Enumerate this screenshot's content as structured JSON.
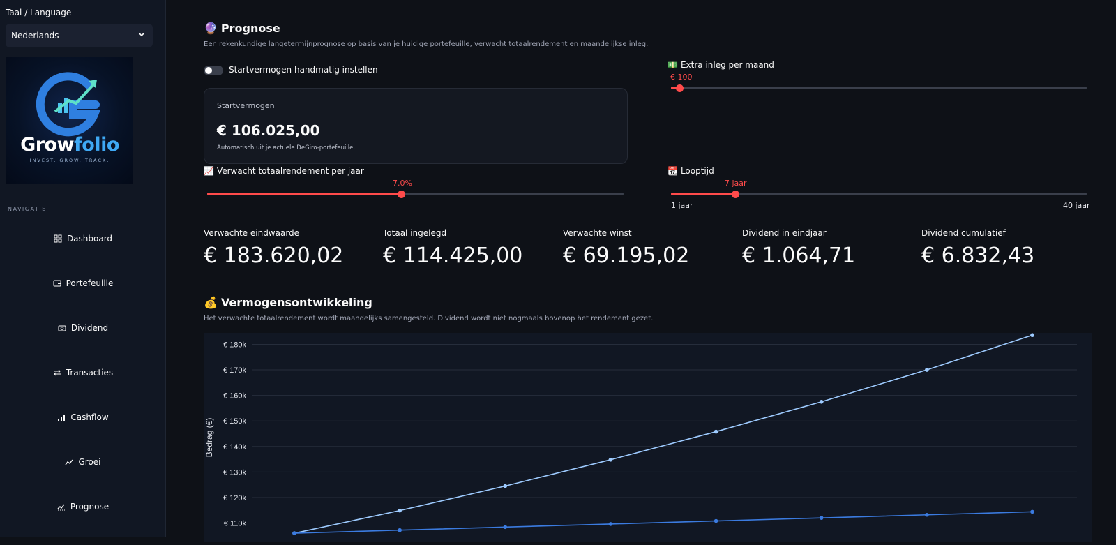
{
  "sidebar": {
    "lang_label": "Taal / Language",
    "lang_value": "Nederlands",
    "logo_word_a": "Grow",
    "logo_word_b": "folio",
    "logo_tagline": "INVEST. GROW. TRACK.",
    "nav_label": "NAVIGATIE",
    "items": [
      {
        "label": "Dashboard",
        "icon": "dashboard-icon"
      },
      {
        "label": "Portefeuille",
        "icon": "wallet-icon"
      },
      {
        "label": "Dividend",
        "icon": "cash-icon"
      },
      {
        "label": "Transacties",
        "icon": "swap-icon"
      },
      {
        "label": "Cashflow",
        "icon": "cashflow-icon"
      },
      {
        "label": "Groei",
        "icon": "trend-icon"
      },
      {
        "label": "Prognose",
        "icon": "forecast-icon"
      }
    ]
  },
  "page": {
    "title": "Prognose",
    "title_emoji": "🔮",
    "subtitle": "Een rekenkundige langetermijnprognose op basis van je huidige portefeuille, verwacht totaalrendement en maandelijkse inleg.",
    "toggle_label": "Startvermogen handmatig instellen",
    "toggle_on": false
  },
  "start_card": {
    "label": "Startvermogen",
    "value": "€ 106.025,00",
    "note": "Automatisch uit je actuele DeGiro-portefeuille."
  },
  "sliders": {
    "monthly": {
      "emoji": "💵",
      "label": "Extra inleg per maand",
      "value_text": "€ 100",
      "fraction": 0.02
    },
    "return": {
      "emoji": "📈",
      "label": "Verwacht totaalrendement per jaar",
      "value_text": "7.0%",
      "fraction": 0.467
    },
    "duration": {
      "emoji": "📆",
      "label": "Looptijd",
      "value_text": "7 jaar",
      "fraction": 0.154,
      "min_label": "1 jaar",
      "max_label": "40 jaar"
    }
  },
  "metrics": [
    {
      "label": "Verwachte eindwaarde",
      "value": "€ 183.620,02"
    },
    {
      "label": "Totaal ingelegd",
      "value": "€ 114.425,00"
    },
    {
      "label": "Verwachte winst",
      "value": "€ 69.195,02"
    },
    {
      "label": "Dividend in eindjaar",
      "value": "€ 1.064,71"
    },
    {
      "label": "Dividend cumulatief",
      "value": "€ 6.832,43"
    }
  ],
  "section2": {
    "title": "Vermogensontwikkeling",
    "emoji": "💰",
    "subtitle": "Het verwachte totaalrendement wordt maandelijks samengesteld. Dividend wordt niet nogmaals bovenop het rendement gezet."
  },
  "colors": {
    "accent": "#ff4b4b",
    "line_value": "#9ecbff",
    "line_invested": "#3b7be0"
  },
  "chart_data": {
    "type": "line",
    "ylabel": "Bedrag (€)",
    "yticks": [
      "€ 110k",
      "€ 120k",
      "€ 130k",
      "€ 140k",
      "€ 150k",
      "€ 160k",
      "€ 170k",
      "€ 180k"
    ],
    "ytick_values": [
      110000,
      120000,
      130000,
      140000,
      150000,
      160000,
      170000,
      180000
    ],
    "ylim": [
      102500,
      184500
    ],
    "x": [
      0,
      1,
      2,
      3,
      4,
      5,
      6,
      7
    ],
    "series": [
      {
        "values": [
          106025,
          114900,
          124500,
          134800,
          145800,
          157500,
          170000,
          183620
        ]
      },
      {
        "values": [
          106025,
          107225,
          108425,
          109625,
          110825,
          112025,
          113225,
          114425
        ]
      }
    ]
  }
}
